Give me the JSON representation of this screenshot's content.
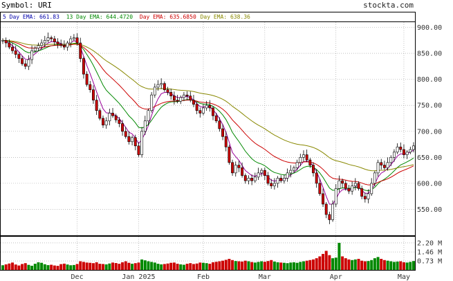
{
  "header": {
    "symbol_label": "Symbol: URI",
    "brand": "stockta.com"
  },
  "ema_legend": [
    {
      "label": "5 Day EMA: 661.83",
      "color": "#0000aa"
    },
    {
      "label": "13 Day EMA: 644.4720",
      "color": "#008800"
    },
    {
      "label": "Day EMA: 635.6850",
      "color": "#cc0000"
    },
    {
      "label": "Day EMA: 638.36",
      "color": "#888800"
    }
  ],
  "colors": {
    "up": "#008800",
    "down": "#cc0000",
    "ema5": "#990099",
    "ema13": "#008800",
    "ema_mid": "#cc0000",
    "ema_long": "#888800",
    "grid": "#999999"
  },
  "chart_data": {
    "type": "candlestick",
    "price_axis": {
      "ticks": [
        "900.00",
        "850.00",
        "800.00",
        "750.00",
        "700.00",
        "650.00",
        "600.00",
        "550.00"
      ],
      "tick_values": [
        900,
        850,
        800,
        750,
        700,
        650,
        600,
        550
      ],
      "ylim": [
        500,
        910
      ]
    },
    "volume_axis": {
      "ticks": [
        "2.20 M",
        "1.46 M",
        "0.73 M"
      ],
      "tick_values": [
        2.2,
        1.46,
        0.73
      ],
      "ylim": [
        0,
        2.7
      ]
    },
    "x_labels": [
      {
        "label": "Dec",
        "day_index": 23
      },
      {
        "label": "Jan 2025",
        "day_index": 42
      },
      {
        "label": "Feb",
        "day_index": 62
      },
      {
        "label": "Mar",
        "day_index": 81
      },
      {
        "label": "Apr",
        "day_index": 103
      },
      {
        "label": "May",
        "day_index": 124
      }
    ],
    "grid": true,
    "closes": [
      875,
      870,
      862,
      855,
      848,
      840,
      830,
      825,
      838,
      855,
      860,
      865,
      870,
      875,
      880,
      878,
      872,
      868,
      865,
      862,
      870,
      878,
      880,
      870,
      840,
      810,
      790,
      780,
      760,
      740,
      725,
      712,
      720,
      735,
      730,
      722,
      715,
      700,
      690,
      680,
      688,
      672,
      655,
      700,
      720,
      740,
      770,
      785,
      790,
      792,
      780,
      775,
      768,
      760,
      758,
      765,
      770,
      768,
      760,
      752,
      740,
      735,
      745,
      750,
      745,
      730,
      720,
      705,
      690,
      670,
      640,
      620,
      635,
      630,
      615,
      605,
      610,
      605,
      612,
      620,
      625,
      615,
      600,
      595,
      600,
      610,
      605,
      610,
      620,
      625,
      630,
      640,
      650,
      655,
      645,
      635,
      620,
      600,
      580,
      560,
      540,
      530,
      560,
      590,
      605,
      600,
      590,
      585,
      595,
      600,
      590,
      575,
      570,
      580,
      600,
      620,
      640,
      635,
      630,
      640,
      650,
      660,
      670,
      665,
      655,
      660,
      665,
      672
    ],
    "volumes": [
      0.38,
      0.45,
      0.52,
      0.6,
      0.44,
      0.36,
      0.48,
      0.55,
      0.41,
      0.34,
      0.5,
      0.62,
      0.58,
      0.46,
      0.39,
      0.42,
      0.36,
      0.33,
      0.47,
      0.51,
      0.44,
      0.38,
      0.4,
      0.48,
      0.7,
      0.65,
      0.6,
      0.58,
      0.55,
      0.62,
      0.5,
      0.48,
      0.45,
      0.52,
      0.6,
      0.56,
      0.5,
      0.62,
      0.7,
      0.58,
      0.5,
      0.55,
      0.6,
      0.85,
      0.78,
      0.7,
      0.65,
      0.6,
      0.5,
      0.45,
      0.48,
      0.52,
      0.58,
      0.6,
      0.5,
      0.45,
      0.42,
      0.5,
      0.55,
      0.48,
      0.52,
      0.6,
      0.58,
      0.55,
      0.5,
      0.62,
      0.66,
      0.7,
      0.75,
      0.82,
      0.9,
      0.8,
      0.72,
      0.7,
      0.68,
      0.75,
      0.7,
      0.64,
      0.6,
      0.65,
      0.7,
      0.66,
      0.72,
      0.8,
      0.68,
      0.62,
      0.6,
      0.58,
      0.55,
      0.6,
      0.62,
      0.58,
      0.65,
      0.7,
      0.75,
      0.8,
      0.85,
      0.95,
      1.1,
      1.3,
      1.55,
      1.2,
      0.95,
      1.0,
      2.2,
      1.1,
      0.95,
      0.85,
      0.8,
      0.85,
      0.9,
      0.75,
      0.7,
      0.72,
      0.8,
      0.95,
      1.05,
      0.9,
      0.8,
      0.75,
      0.7,
      0.65,
      0.68,
      0.7,
      0.62,
      0.6,
      0.65,
      0.72
    ]
  }
}
